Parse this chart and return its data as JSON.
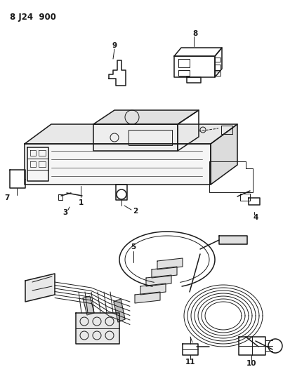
{
  "title": "8 J24  900",
  "bg_color": "#ffffff",
  "line_color": "#1a1a1a",
  "figsize": [
    4.03,
    5.33
  ],
  "dpi": 100
}
